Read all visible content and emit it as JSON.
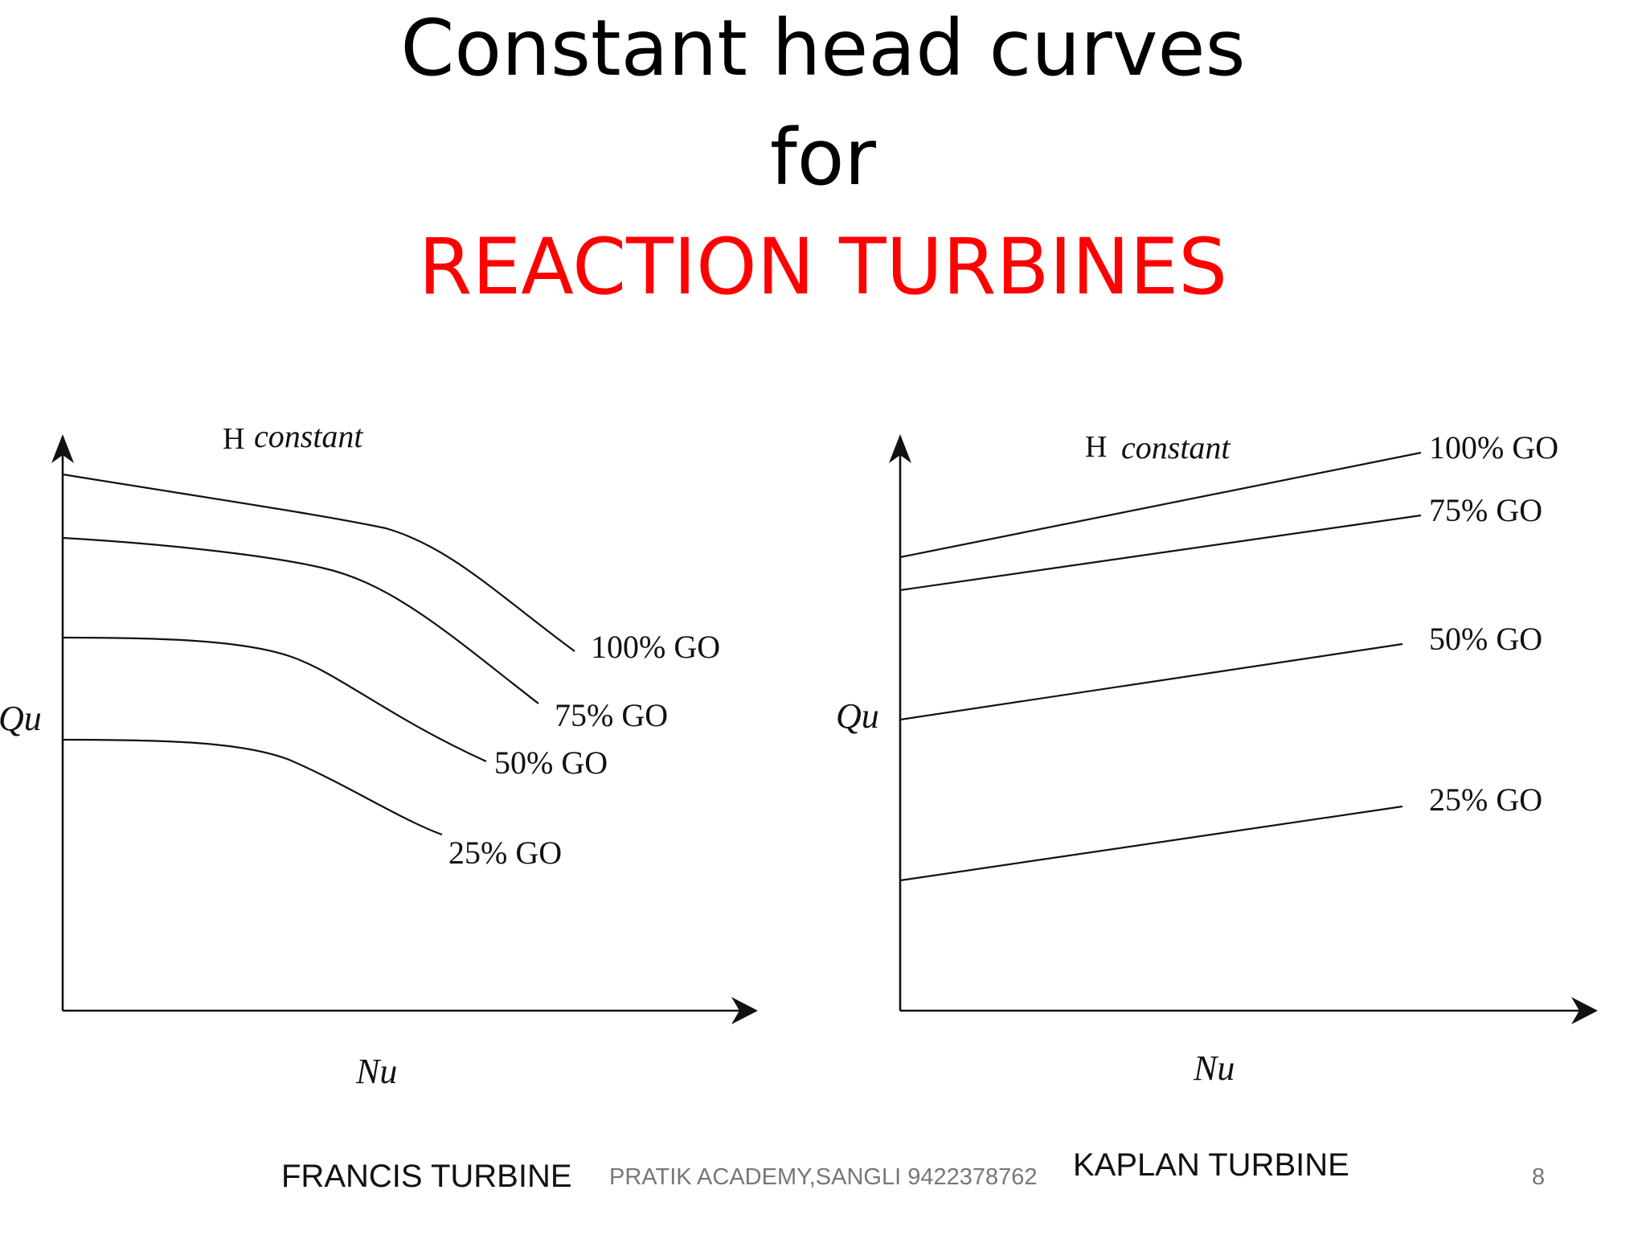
{
  "slide": {
    "title_line1": "Constant head curves",
    "title_line2": "for",
    "title_line3": "REACTION TURBINES",
    "title_line3_color": "#ff0000",
    "footer": "PRATIK ACADEMY,SANGLI 9422378762",
    "page_number": "8"
  },
  "francis": {
    "header": "H",
    "header_italic": "constant",
    "y_label": "Qu",
    "x_label": "Nu",
    "caption": "FRANCIS TURBINE",
    "curves": [
      "100% GO",
      "75% GO",
      "50% GO",
      "25% GO"
    ]
  },
  "kaplan": {
    "header": "H",
    "header_italic": "constant",
    "y_label": "Qu",
    "x_label": "Nu",
    "caption": "KAPLAN TURBINE",
    "curves": [
      "100% GO",
      "75% GO",
      "50% GO",
      "25% GO"
    ]
  }
}
